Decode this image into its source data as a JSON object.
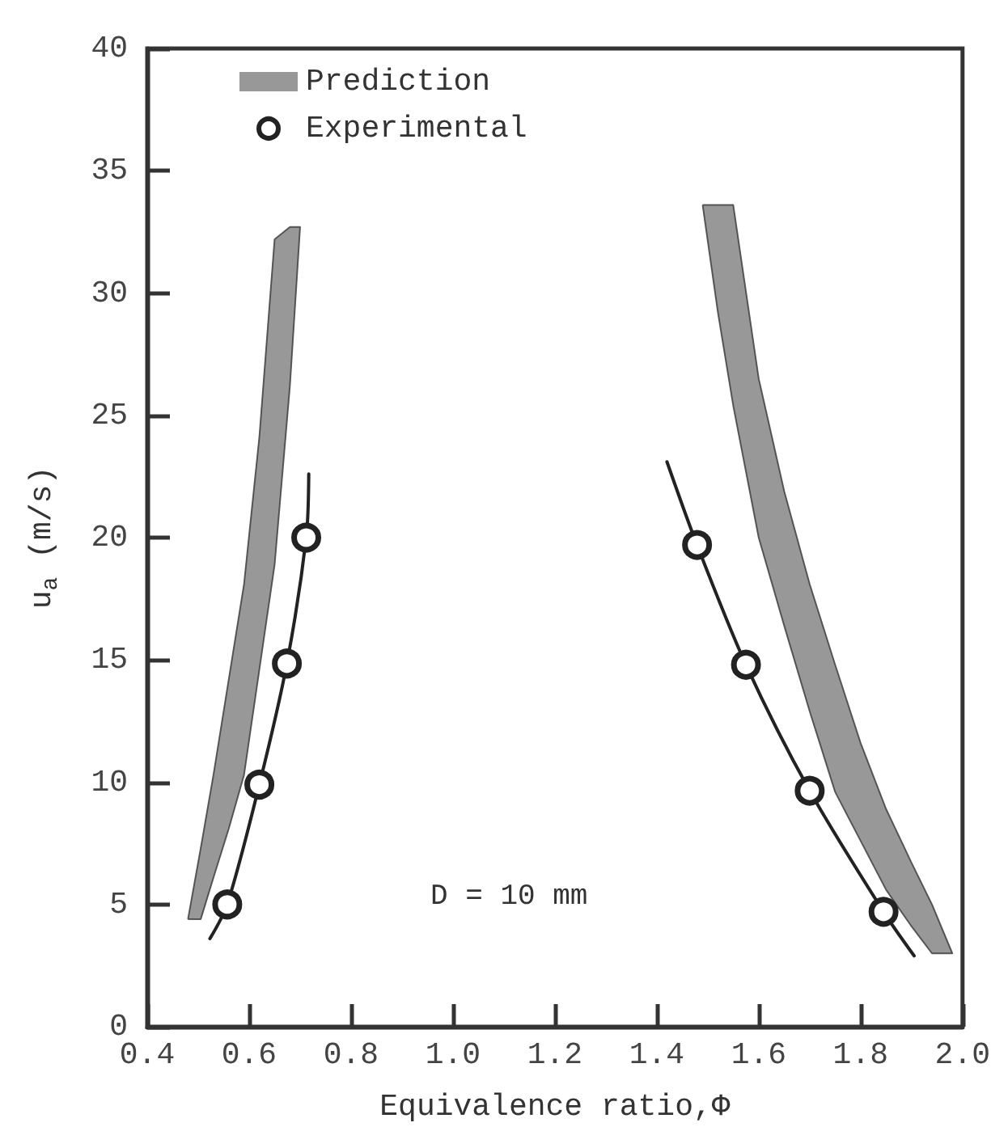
{
  "chart_data": {
    "type": "scatter",
    "xlabel": "Equivalence ratio,Φ",
    "ylabel": "u$_{a}$ (m/s)",
    "annotations": [
      "D = 10 mm"
    ],
    "xlim": [
      0.4,
      2.0
    ],
    "xticks": [
      0.4,
      0.6,
      0.8,
      {
        "value": 1.0,
        "label": "1.0"
      },
      1.2,
      1.4,
      1.6,
      1.8,
      {
        "value": 2.0,
        "label": "2.0"
      }
    ],
    "ylim": [
      0,
      40
    ],
    "yticks": [
      0,
      5,
      10,
      15,
      20,
      25,
      30,
      35,
      40
    ],
    "grid": false,
    "legend": "top left",
    "marker": "circle",
    "series": [
      {
        "name": "Prediction",
        "type": "area",
        "color": "#444444",
        "marker": "none",
        "x": [
          0.48,
          0.505,
          0.53,
          0.56,
          0.59,
          0.62,
          0.65,
          0.68,
          0.7,
          0.68,
          0.65,
          0.62,
          0.59,
          0.56,
          0.53,
          0.505
        ],
        "values": [
          4.4,
          4.4,
          6.1,
          8.1,
          10.3,
          14.6,
          18.9,
          26.2,
          32.7,
          32.7,
          32.2,
          24.1,
          18.1,
          14.2,
          10.3,
          7.3
        ]
      },
      {
        "type": "area",
        "color": "#444444",
        "marker": "none",
        "x": [
          1.49,
          1.52,
          1.55,
          1.6,
          1.65,
          1.7,
          1.75,
          1.8,
          1.85,
          1.9,
          1.94,
          1.98,
          1.94,
          1.9,
          1.85,
          1.8,
          1.75,
          1.7,
          1.65,
          1.6,
          1.55,
          1.52
        ],
        "values": [
          33.6,
          29.2,
          25.4,
          20,
          16.4,
          12.9,
          9.6,
          7.6,
          5.6,
          4.1,
          3.0,
          3.0,
          5.0,
          6.7,
          8.9,
          11.6,
          14.8,
          18.1,
          21.9,
          26.5,
          33.6,
          33.6
        ]
      },
      {
        "type": "line",
        "color": "#222222",
        "marker": "none",
        "x": [
          0.523,
          0.557,
          0.62,
          0.674,
          0.712,
          0.717
        ],
        "values": [
          3.6,
          5,
          9.9,
          14.85,
          20,
          22.6
        ]
      },
      {
        "type": "line",
        "color": "#222222",
        "marker": "none",
        "x": [
          1.42,
          1.479,
          1.575,
          1.7,
          1.845,
          1.905
        ],
        "values": [
          23.1,
          19.7,
          14.8,
          9.65,
          4.7,
          2.9
        ]
      },
      {
        "name": "Experimental",
        "color": "#222222",
        "x": [
          0.557,
          0.62,
          0.674,
          0.712,
          1.479,
          1.575,
          1.7,
          1.845
        ],
        "values": [
          5,
          9.9,
          14.85,
          20,
          19.7,
          14.8,
          9.65,
          4.7
        ]
      }
    ]
  }
}
